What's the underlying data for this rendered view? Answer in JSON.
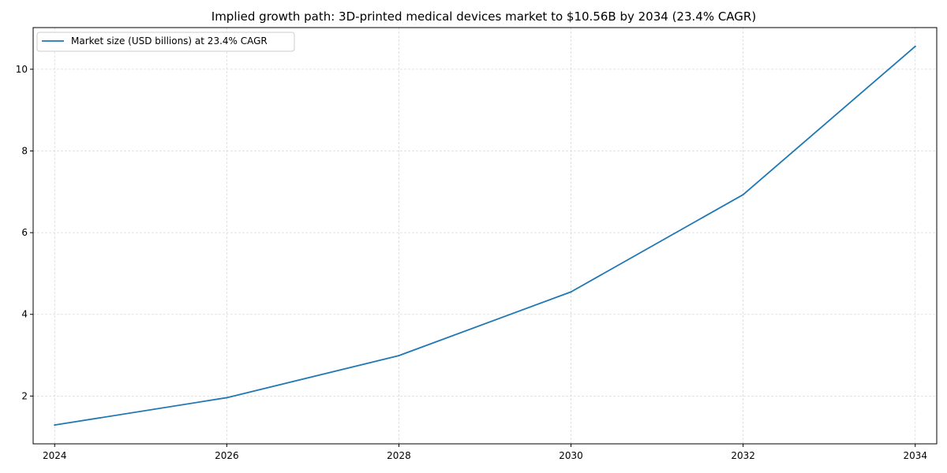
{
  "chart_data": {
    "type": "line",
    "title": "Implied growth path: 3D-printed medical devices market to $10.56B by 2034 (23.4% CAGR)",
    "xlabel": "",
    "ylabel": "",
    "x": [
      2024,
      2026,
      2028,
      2030,
      2032,
      2034
    ],
    "series": [
      {
        "name": "Market size (USD billions) at 23.4% CAGR",
        "values": [
          1.29,
          1.96,
          2.99,
          4.55,
          6.93,
          10.56
        ],
        "color": "#1f77b4"
      }
    ],
    "xticks": [
      2024,
      2026,
      2028,
      2030,
      2032,
      2034
    ],
    "yticks": [
      2,
      4,
      6,
      8,
      10
    ],
    "xlim": [
      2023.75,
      2034.25
    ],
    "ylim": [
      0.83,
      11.02
    ],
    "grid": true,
    "legend_position": "top-left"
  }
}
